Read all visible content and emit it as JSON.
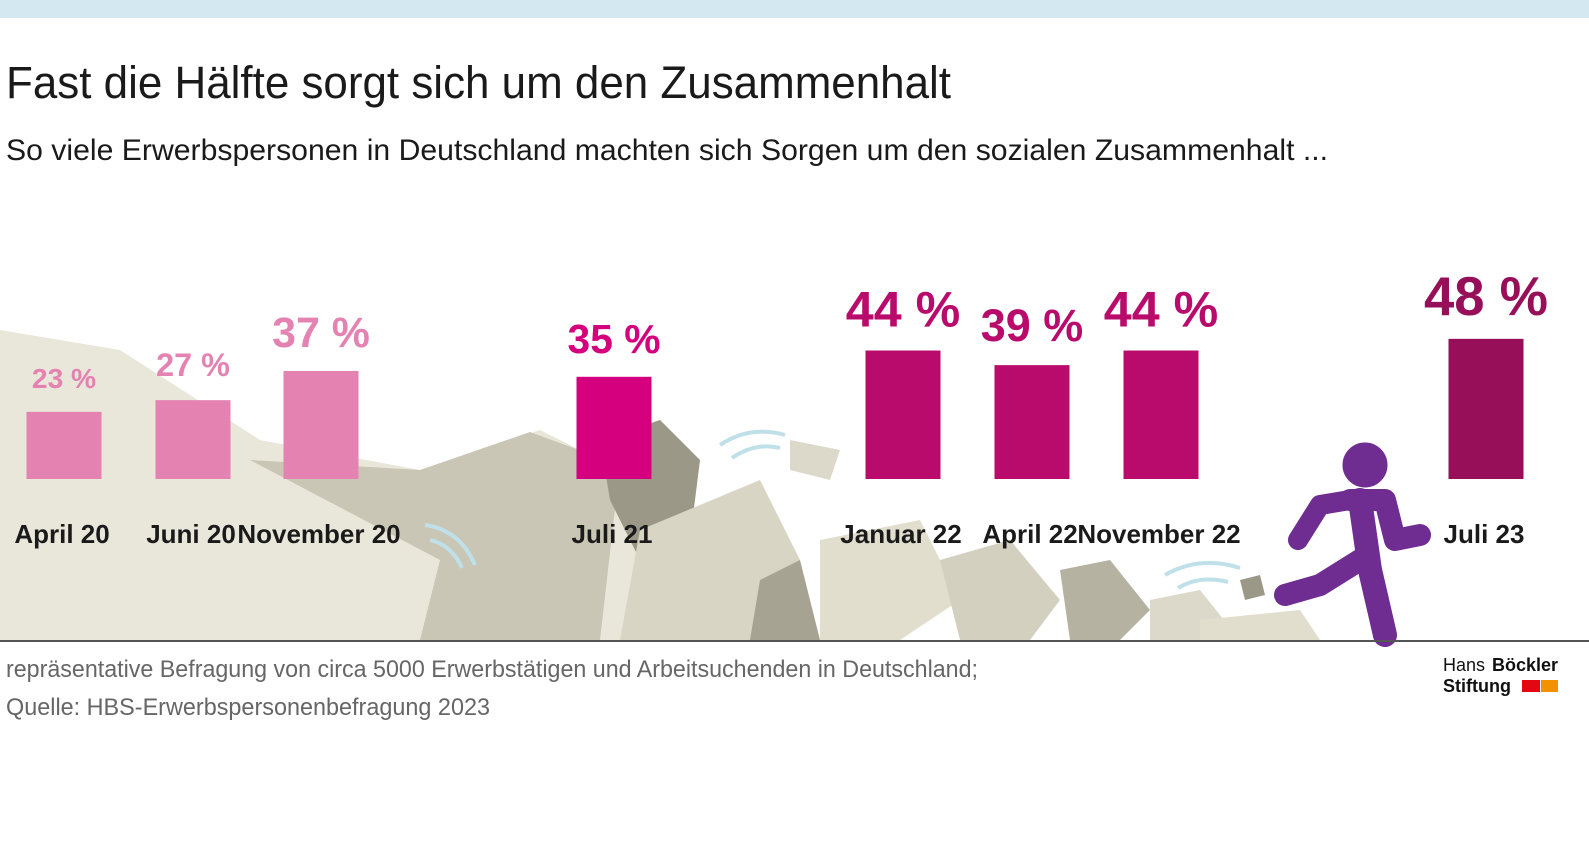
{
  "chart_data": {
    "type": "bar",
    "title": "Fast die Hälfte sorgt sich um den Zusammenhalt",
    "subtitle": "So viele Erwerbspersonen in Deutschland machten sich Sorgen um den sozialen Zusammenhalt ...",
    "categories": [
      "April 20",
      "Juni 20",
      "November 20",
      "Juli 21",
      "Januar 22",
      "April 22",
      "November 22",
      "Juli 23"
    ],
    "values": [
      23,
      27,
      37,
      35,
      44,
      39,
      44,
      48
    ],
    "value_labels": [
      "23 %",
      "27 %",
      "37 %",
      "35 %",
      "44 %",
      "39 %",
      "44 %",
      "48 %"
    ],
    "colors": [
      "#e482b2",
      "#e482b2",
      "#e482b2",
      "#d4007e",
      "#b80b6b",
      "#b80b6b",
      "#b80b6b",
      "#960f58"
    ],
    "footnote": [
      "repräsentative Befragung von circa 5000 Erwerbstätigen und Arbeitsuchenden in Deutschland;",
      "Quelle: HBS-Erwerbspersonenbefragung 2023"
    ],
    "logo": [
      "Hans",
      "Böckler",
      "Stiftung"
    ]
  }
}
